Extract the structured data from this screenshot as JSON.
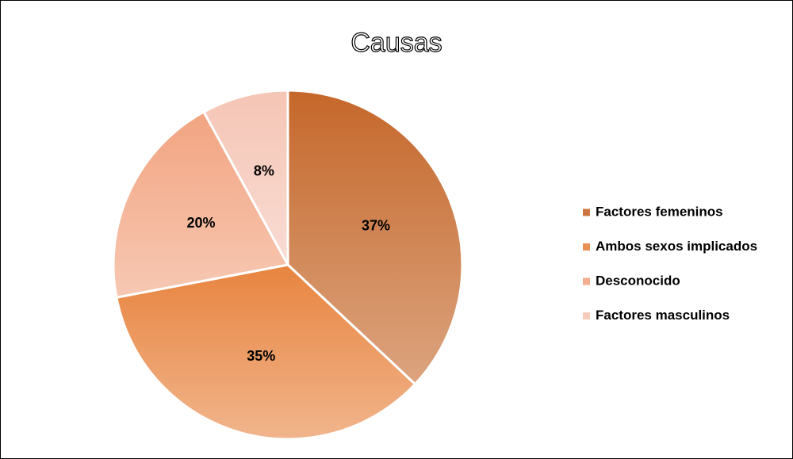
{
  "chart_data": {
    "type": "pie",
    "title": "Causas",
    "categories": [
      "Factores femeninos",
      "Ambos sexos implicados",
      "Desconocido",
      "Factores masculinos"
    ],
    "values": [
      37,
      35,
      20,
      8
    ],
    "value_labels": [
      "37%",
      "35%",
      "20%",
      "8%"
    ],
    "colors": [
      "#c5672a",
      "#e8843f",
      "#f2a481",
      "#f5c5b5"
    ],
    "legend": "right"
  }
}
